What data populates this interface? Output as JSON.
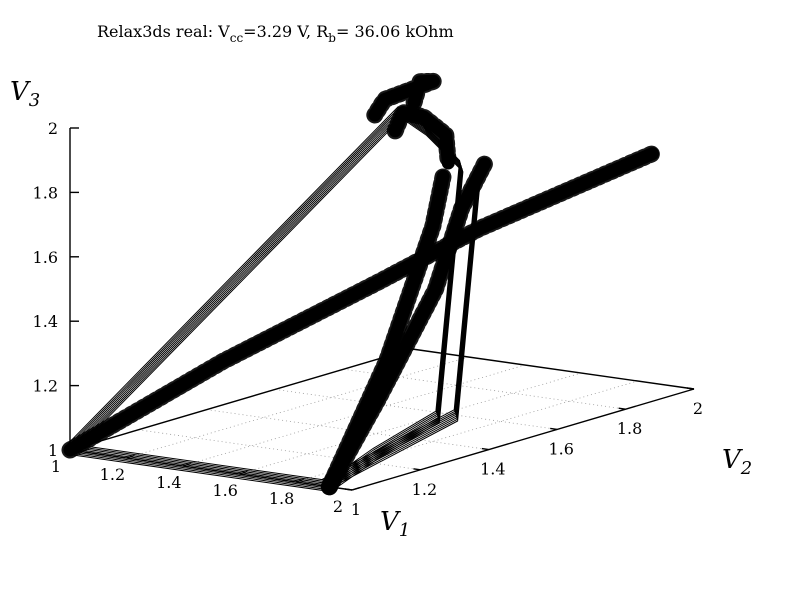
{
  "chart_data": {
    "type": "line",
    "projection": "3d",
    "title": {
      "prefix": "Relax3ds real: V",
      "vcc_sub": "cc",
      "mid": "=3.29 V, R",
      "rb_sub": "b",
      "suffix": "= 36.06 kOhm"
    },
    "axes": {
      "x": {
        "name": "V",
        "sub": "1",
        "range": [
          1,
          2
        ],
        "ticks": [
          "1",
          "1.2",
          "1.4",
          "1.6",
          "1.8",
          "2"
        ]
      },
      "y": {
        "name": "V",
        "sub": "2",
        "range": [
          1,
          2
        ],
        "ticks": [
          "1",
          "1.2",
          "1.4",
          "1.6",
          "1.8",
          "2"
        ]
      },
      "z": {
        "name": "V",
        "sub": "3",
        "range": [
          1,
          2
        ],
        "ticks": [
          "1",
          "1.2",
          "1.4",
          "1.6",
          "1.8",
          "2"
        ]
      }
    },
    "grid": true,
    "legend": "none",
    "color": "#000000",
    "series": [
      {
        "style": "thin",
        "points": [
          [
            1,
            1,
            1
          ],
          [
            1.92,
            1,
            1
          ],
          [
            1.9,
            1.15,
            1.05
          ],
          [
            1.88,
            1.35,
            1.1
          ],
          [
            1.6,
            1.65,
            1.75
          ],
          [
            1.35,
            1.75,
            1.8
          ],
          [
            1.2,
            1.8,
            1.82
          ],
          [
            1,
            1,
            1
          ],
          [
            1.9,
            1,
            1
          ],
          [
            1.86,
            1.42,
            1.08
          ],
          [
            1.6,
            1.7,
            1.7
          ]
        ]
      },
      {
        "style": "thick",
        "points": [
          [
            1.25,
            1.8,
            1.86
          ],
          [
            1.15,
            1.9,
            1.88
          ],
          [
            1.1,
            1.98,
            1.85
          ],
          [
            1.0,
            1.92,
            1.8
          ],
          [
            1.05,
            1.85,
            1.78
          ]
        ]
      },
      {
        "style": "thick",
        "points": [
          [
            1.28,
            1.72,
            1.8
          ],
          [
            1.15,
            1.85,
            1.8
          ],
          [
            1.1,
            1.95,
            1.75
          ],
          [
            1.12,
            2.0,
            1.68
          ],
          [
            1.25,
            1.9,
            1.64
          ]
        ]
      },
      {
        "style": "thick",
        "points": [
          [
            1,
            1,
            1
          ],
          [
            1.3,
            1.2,
            1.25
          ],
          [
            1.55,
            1.45,
            1.45
          ],
          [
            1.7,
            1.62,
            1.58
          ],
          [
            1.95,
            1.92,
            1.75
          ]
        ]
      },
      {
        "style": "thick",
        "points": [
          [
            1.92,
            1,
            1
          ],
          [
            1.85,
            1.2,
            1.2
          ],
          [
            1.75,
            1.45,
            1.45
          ],
          [
            1.6,
            1.65,
            1.62
          ],
          [
            1.5,
            1.8,
            1.7
          ]
        ]
      },
      {
        "style": "thick",
        "points": [
          [
            1.92,
            1,
            1
          ],
          [
            1.82,
            1.25,
            1.3
          ],
          [
            1.62,
            1.55,
            1.6
          ],
          [
            1.45,
            1.72,
            1.68
          ]
        ]
      }
    ]
  }
}
